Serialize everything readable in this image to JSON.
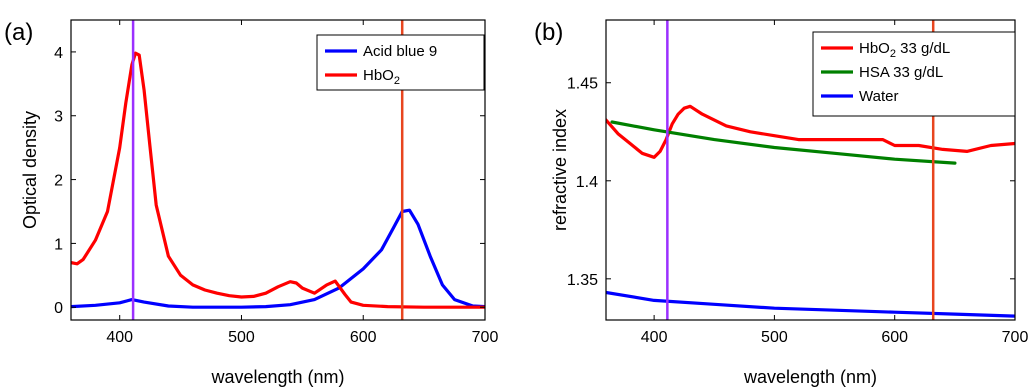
{
  "chart_data": [
    {
      "type": "line",
      "panel_label": "(a)",
      "xlabel": "wavelength (nm)",
      "ylabel": "Optical density",
      "xlim": [
        360,
        700
      ],
      "ylim": [
        -0.2,
        4.5
      ],
      "xticks": [
        400,
        500,
        600,
        700
      ],
      "xtick_labels": [
        "400",
        "500",
        "600",
        "700"
      ],
      "yticks": [
        0,
        1,
        2,
        3,
        4
      ],
      "ytick_labels": [
        "0",
        "1",
        "2",
        "3",
        "4"
      ],
      "legend_position": "top-right",
      "vlines": [
        {
          "x": 411,
          "color": "#9b30ff"
        },
        {
          "x": 632,
          "color": "#e8451e"
        }
      ],
      "series": [
        {
          "name": "Acid blue 9",
          "color": "#0000ff",
          "x": [
            360,
            380,
            400,
            410,
            420,
            440,
            460,
            480,
            500,
            520,
            540,
            560,
            580,
            600,
            615,
            625,
            632,
            638,
            645,
            655,
            665,
            675,
            690,
            700
          ],
          "y": [
            0.01,
            0.03,
            0.07,
            0.12,
            0.08,
            0.02,
            0.0,
            0.0,
            0.0,
            0.01,
            0.04,
            0.12,
            0.3,
            0.6,
            0.9,
            1.25,
            1.5,
            1.52,
            1.3,
            0.8,
            0.35,
            0.12,
            0.02,
            0.01
          ]
        },
        {
          "name": "HbO",
          "name_subscript": "2",
          "color": "#ff0000",
          "x": [
            360,
            365,
            370,
            380,
            390,
            400,
            405,
            410,
            413,
            416,
            420,
            425,
            430,
            440,
            450,
            460,
            470,
            480,
            490,
            500,
            510,
            520,
            530,
            540,
            545,
            550,
            560,
            570,
            577,
            585,
            590,
            600,
            620,
            650,
            700
          ],
          "y": [
            0.7,
            0.68,
            0.75,
            1.05,
            1.5,
            2.5,
            3.2,
            3.8,
            3.98,
            3.95,
            3.4,
            2.5,
            1.6,
            0.8,
            0.5,
            0.35,
            0.27,
            0.22,
            0.18,
            0.16,
            0.17,
            0.22,
            0.32,
            0.4,
            0.38,
            0.3,
            0.22,
            0.35,
            0.41,
            0.2,
            0.08,
            0.03,
            0.01,
            0.0,
            0.0
          ]
        }
      ]
    },
    {
      "type": "line",
      "panel_label": "(b)",
      "xlabel": "wavelength (nm)",
      "ylabel": "refractive index",
      "xlim": [
        360,
        700
      ],
      "ylim": [
        1.329,
        1.482
      ],
      "xticks": [
        400,
        500,
        600,
        700
      ],
      "xtick_labels": [
        "400",
        "500",
        "600",
        "700"
      ],
      "yticks": [
        1.35,
        1.4,
        1.45
      ],
      "ytick_labels": [
        "1.35",
        "1.4",
        "1.45"
      ],
      "legend_position": "top-right",
      "vlines": [
        {
          "x": 411,
          "color": "#9b30ff"
        },
        {
          "x": 632,
          "color": "#e8451e"
        }
      ],
      "series": [
        {
          "name": "HbO",
          "name_subscript": "2",
          "name_suffix": " 33 g/dL",
          "color": "#ff0000",
          "x": [
            360,
            370,
            380,
            390,
            400,
            405,
            410,
            415,
            420,
            425,
            430,
            440,
            460,
            480,
            500,
            520,
            540,
            560,
            580,
            590,
            600,
            620,
            640,
            660,
            680,
            700
          ],
          "y": [
            1.431,
            1.424,
            1.419,
            1.414,
            1.412,
            1.415,
            1.421,
            1.429,
            1.434,
            1.437,
            1.438,
            1.434,
            1.428,
            1.425,
            1.423,
            1.421,
            1.421,
            1.421,
            1.421,
            1.421,
            1.418,
            1.418,
            1.416,
            1.415,
            1.418,
            1.419
          ]
        },
        {
          "name": "HSA  33 g/dL",
          "color": "#008000",
          "x": [
            365,
            400,
            450,
            500,
            550,
            600,
            650
          ],
          "y": [
            1.43,
            1.426,
            1.421,
            1.417,
            1.414,
            1.411,
            1.409
          ]
        },
        {
          "name": "Water",
          "color": "#0000ff",
          "x": [
            360,
            400,
            450,
            500,
            550,
            600,
            650,
            700
          ],
          "y": [
            1.343,
            1.339,
            1.337,
            1.335,
            1.334,
            1.333,
            1.332,
            1.331
          ]
        }
      ]
    }
  ]
}
